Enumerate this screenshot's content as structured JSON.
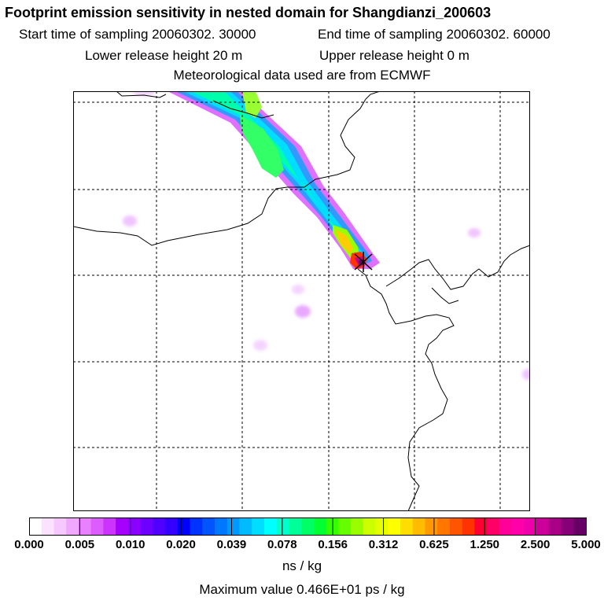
{
  "header": {
    "title": "Footprint emission sensitivity in nested domain for Shangdianzi_200603",
    "start_sampling": "Start time of sampling 20060302. 30000",
    "end_sampling": "End time of sampling 20060302. 60000",
    "lower_release": "Lower release height   20 m",
    "upper_release": "Upper release height    0 m",
    "met_data": "Meteorological data used are from ECMWF"
  },
  "legend": {
    "ticks": [
      "0.000",
      "0.005",
      "0.010",
      "0.020",
      "0.039",
      "0.078",
      "0.156",
      "0.312",
      "0.625",
      "1.250",
      "2.500",
      "5.000"
    ],
    "colors": [
      "#ffffff",
      "#fbe2ff",
      "#f6c8ff",
      "#f0a8ff",
      "#e880ff",
      "#dd5cff",
      "#cc33ff",
      "#a600ff",
      "#8c00ff",
      "#6e00ff",
      "#5000ff",
      "#3300ff",
      "#0000ff",
      "#0033ff",
      "#0055ff",
      "#0077ff",
      "#0099ff",
      "#00bbff",
      "#00ddff",
      "#00ffff",
      "#00ffcc",
      "#00ff99",
      "#00ff66",
      "#00ff33",
      "#33ff00",
      "#66ff00",
      "#99ff00",
      "#ccff00",
      "#e6ff00",
      "#ffff00",
      "#ffdd00",
      "#ffbb00",
      "#ff9900",
      "#ff7700",
      "#ff5500",
      "#ff3300",
      "#ff0033",
      "#ff0066",
      "#ff0099",
      "#ff00aa",
      "#ee00aa",
      "#cc0099",
      "#aa0088",
      "#880077",
      "#660066"
    ],
    "units": "ns / kg",
    "max_value": "Maximum value  0.466E+01 ps / kg"
  },
  "map": {
    "receptor": "Shangdianzi"
  }
}
